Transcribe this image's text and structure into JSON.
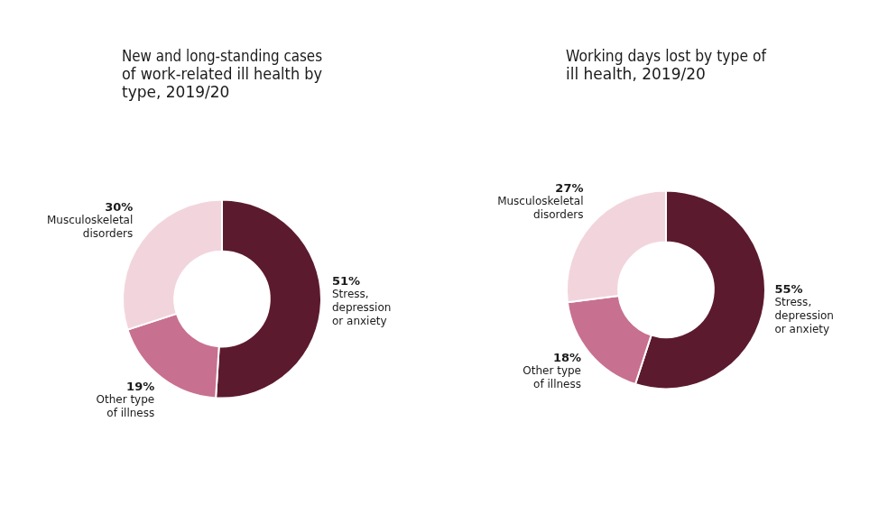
{
  "chart_data": [
    {
      "type": "doughnut",
      "title": "New and long-standing cases\nof work-related ill health by\ntype, 2019/20",
      "categories": [
        "Stress,\ndepression\nor anxiety",
        "Other type\nof illness",
        "Musculoskeletal\ndisorders"
      ],
      "values": [
        51,
        19,
        30
      ],
      "value_labels": [
        "51%",
        "19%",
        "30%"
      ],
      "colors": [
        "#5c1a2e",
        "#c87090",
        "#f2d5dc"
      ],
      "data_labels": true
    },
    {
      "type": "doughnut",
      "title": "Working days lost by type of\nill health, 2019/20",
      "categories": [
        "Stress,\ndepression\nor anxiety",
        "Other type\nof illness",
        "Musculoskeletal\ndisorders"
      ],
      "values": [
        55,
        18,
        27
      ],
      "value_labels": [
        "55%",
        "18%",
        "27%"
      ],
      "colors": [
        "#5c1a2e",
        "#c87090",
        "#f2d5dc"
      ],
      "data_labels": true
    }
  ]
}
